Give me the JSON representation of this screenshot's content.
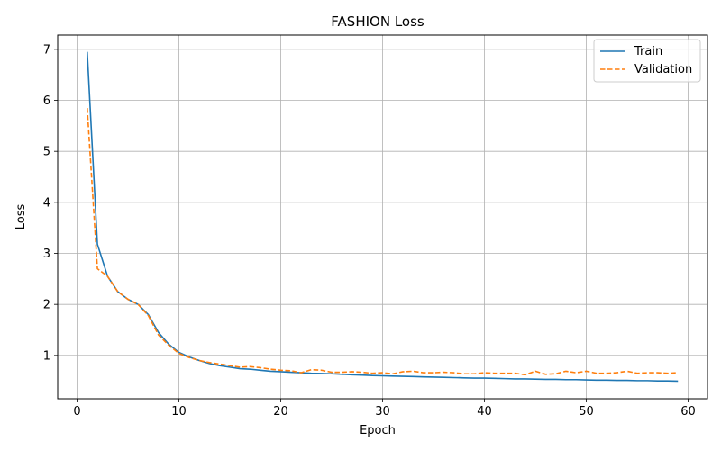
{
  "chart_data": {
    "type": "line",
    "title": "FASHION Loss",
    "xlabel": "Epoch",
    "ylabel": "Loss",
    "xlim": [
      -1.9,
      61.9
    ],
    "ylim": [
      0.15,
      7.28
    ],
    "xticks": [
      0,
      10,
      20,
      30,
      40,
      50,
      60
    ],
    "yticks": [
      1,
      2,
      3,
      4,
      5,
      6,
      7
    ],
    "grid": true,
    "legend_position": "top-right",
    "x": [
      1,
      2,
      3,
      4,
      5,
      6,
      7,
      8,
      9,
      10,
      11,
      12,
      13,
      14,
      15,
      16,
      17,
      18,
      19,
      20,
      21,
      22,
      23,
      24,
      25,
      26,
      27,
      28,
      29,
      30,
      31,
      32,
      33,
      34,
      35,
      36,
      37,
      38,
      39,
      40,
      41,
      42,
      43,
      44,
      45,
      46,
      47,
      48,
      49,
      50,
      51,
      52,
      53,
      54,
      55,
      56,
      57,
      58,
      59
    ],
    "series": [
      {
        "name": "Train",
        "color": "#1f77b4",
        "style": "solid",
        "values": [
          6.95,
          3.18,
          2.55,
          2.25,
          2.1,
          2.0,
          1.8,
          1.45,
          1.22,
          1.06,
          0.97,
          0.9,
          0.84,
          0.8,
          0.77,
          0.74,
          0.73,
          0.71,
          0.69,
          0.68,
          0.67,
          0.66,
          0.65,
          0.645,
          0.64,
          0.63,
          0.62,
          0.615,
          0.605,
          0.6,
          0.595,
          0.59,
          0.585,
          0.58,
          0.575,
          0.57,
          0.565,
          0.56,
          0.555,
          0.555,
          0.55,
          0.545,
          0.54,
          0.54,
          0.535,
          0.53,
          0.53,
          0.525,
          0.525,
          0.52,
          0.515,
          0.515,
          0.51,
          0.51,
          0.505,
          0.505,
          0.5,
          0.5,
          0.495
        ]
      },
      {
        "name": "Validation",
        "color": "#ff7f0e",
        "style": "dashed",
        "values": [
          5.85,
          2.7,
          2.55,
          2.25,
          2.1,
          2.0,
          1.78,
          1.4,
          1.2,
          1.04,
          0.96,
          0.9,
          0.86,
          0.83,
          0.8,
          0.77,
          0.78,
          0.76,
          0.73,
          0.71,
          0.7,
          0.66,
          0.72,
          0.71,
          0.67,
          0.67,
          0.68,
          0.67,
          0.65,
          0.66,
          0.64,
          0.68,
          0.69,
          0.66,
          0.66,
          0.67,
          0.66,
          0.64,
          0.64,
          0.66,
          0.65,
          0.65,
          0.65,
          0.62,
          0.69,
          0.63,
          0.64,
          0.69,
          0.66,
          0.69,
          0.65,
          0.65,
          0.66,
          0.69,
          0.65,
          0.66,
          0.66,
          0.65,
          0.66
        ]
      }
    ]
  }
}
